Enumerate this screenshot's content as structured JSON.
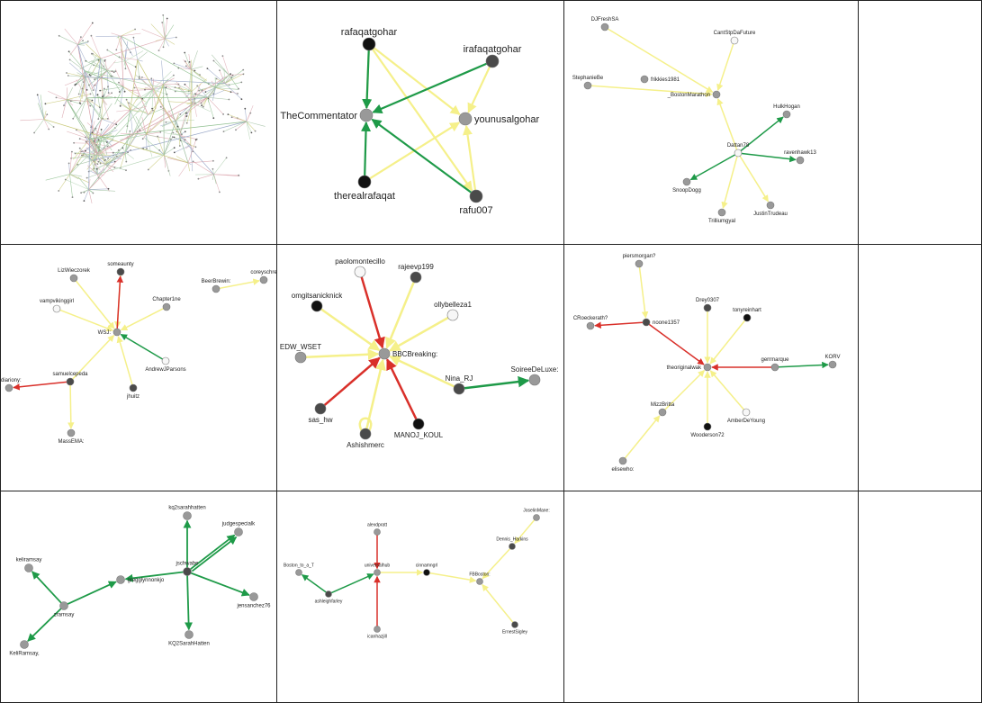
{
  "colors": {
    "edge_mention": "#f5f08a",
    "edge_retweet": "#1e9a48",
    "edge_reply": "#d9302a",
    "node_black": "#111111",
    "node_dark": "#4a4a4a",
    "node_gray": "#999999",
    "node_white": "#f7f7f7",
    "border": "#222222"
  },
  "panels": [
    {
      "id": "overview",
      "kind": "cloud",
      "labels": [],
      "nodes": [],
      "edges": []
    },
    {
      "id": "commentator",
      "font": 11,
      "nodes": [
        {
          "id": "rafaqatgohar",
          "label": "rafaqatgohar",
          "fill": "black",
          "lp": "above"
        },
        {
          "id": "irafaqatgohar",
          "label": "irafaqatgohar",
          "fill": "dark",
          "lp": "above"
        },
        {
          "id": "TheCommentator",
          "label": "TheCommentator",
          "fill": "gray",
          "lp": "left"
        },
        {
          "id": "younusalgohar",
          "label": "younusalgohar",
          "fill": "gray",
          "lp": "right"
        },
        {
          "id": "therealrafaqat",
          "label": "therealrafaqat",
          "fill": "black",
          "lp": "below"
        },
        {
          "id": "rafu007",
          "label": "rafu007",
          "fill": "dark",
          "lp": "below"
        }
      ],
      "edges": [
        {
          "s": "rafaqatgohar",
          "t": "younusalgohar",
          "type": "mention"
        },
        {
          "s": "irafaqatgohar",
          "t": "younusalgohar",
          "type": "mention"
        },
        {
          "s": "therealrafaqat",
          "t": "younusalgohar",
          "type": "mention"
        },
        {
          "s": "rafu007",
          "t": "younusalgohar",
          "type": "mention"
        },
        {
          "s": "rafaqatgohar",
          "t": "TheCommentator",
          "type": "mention"
        },
        {
          "s": "rafaqatgohar",
          "t": "rafu007",
          "type": "mention"
        },
        {
          "s": "irafaqatgohar",
          "t": "TheCommentator",
          "type": "retweet"
        },
        {
          "s": "rafaqatgohar",
          "t": "TheCommentator",
          "type": "retweet"
        },
        {
          "s": "therealrafaqat",
          "t": "TheCommentator",
          "type": "retweet"
        },
        {
          "s": "rafu007",
          "t": "TheCommentator",
          "type": "retweet"
        }
      ]
    },
    {
      "id": "boston-marathon",
      "font": 6,
      "nodes": [
        {
          "id": "DJFreshSA",
          "label": "DJFreshSA",
          "fill": "gray",
          "lp": "above"
        },
        {
          "id": "StephanieBe",
          "label": "StephanieBe",
          "fill": "gray",
          "lp": "above"
        },
        {
          "id": "frikkies1981",
          "label": "frikkies1981",
          "fill": "gray",
          "lp": "right"
        },
        {
          "id": "CantStpDaFuture",
          "label": "CantStpDaFuture",
          "fill": "white",
          "lp": "above"
        },
        {
          "id": "_BostonMarathon",
          "label": "_BostonMarathon",
          "fill": "gray",
          "lp": "left"
        },
        {
          "id": "HulkHogan",
          "label": "HulkHogan",
          "fill": "gray",
          "lp": "above"
        },
        {
          "id": "Dattan78",
          "label": "Dattan78",
          "fill": "white",
          "lp": "above"
        },
        {
          "id": "ravenhawk13",
          "label": "ravenhawk13",
          "fill": "gray",
          "lp": "above"
        },
        {
          "id": "SnoopDogg",
          "label": "SnoopDogg",
          "fill": "gray",
          "lp": "below"
        },
        {
          "id": "JustinTrudeau",
          "label": "JustinTrudeau",
          "fill": "gray",
          "lp": "below"
        },
        {
          "id": "Trilliumgyal",
          "label": "Trilliumgyal",
          "fill": "gray",
          "lp": "below"
        }
      ],
      "edges": [
        {
          "s": "DJFreshSA",
          "t": "_BostonMarathon",
          "type": "mention"
        },
        {
          "s": "StephanieBe",
          "t": "_BostonMarathon",
          "type": "mention"
        },
        {
          "s": "CantStpDaFuture",
          "t": "_BostonMarathon",
          "type": "mention"
        },
        {
          "s": "Dattan78",
          "t": "_BostonMarathon",
          "type": "mention"
        },
        {
          "s": "Dattan78",
          "t": "JustinTrudeau",
          "type": "mention"
        },
        {
          "s": "Dattan78",
          "t": "Trilliumgyal",
          "type": "mention"
        },
        {
          "s": "Dattan78",
          "t": "HulkHogan",
          "type": "retweet"
        },
        {
          "s": "Dattan78",
          "t": "ravenhawk13",
          "type": "retweet"
        },
        {
          "s": "Dattan78",
          "t": "SnoopDogg",
          "type": "retweet"
        }
      ]
    },
    {
      "id": "empty-1",
      "kind": "empty",
      "nodes": [],
      "edges": []
    },
    {
      "id": "wsj",
      "font": 6,
      "nodes": [
        {
          "id": "someaunty",
          "label": "someaunty",
          "fill": "dark",
          "lp": "above"
        },
        {
          "id": "LizWieczorek",
          "label": "LizWieczorek",
          "fill": "gray",
          "lp": "above"
        },
        {
          "id": "coreyschre",
          "label": "coreyschre",
          "fill": "gray",
          "lp": "above"
        },
        {
          "id": "BeerBrewin",
          "label": "BeerBrewin:",
          "fill": "gray",
          "lp": "above"
        },
        {
          "id": "vampvikinggirl",
          "label": "vampvikinggirl",
          "fill": "white",
          "lp": "above"
        },
        {
          "id": "Chapter1ne",
          "label": "Chapter1ne",
          "fill": "gray",
          "lp": "above"
        },
        {
          "id": "WSJ",
          "label": "WSJ:",
          "fill": "gray",
          "lp": "left"
        },
        {
          "id": "AndrewJParsons",
          "label": "AndrewJParsons",
          "fill": "white",
          "lp": "below"
        },
        {
          "id": "samuelcepeda",
          "label": "samuelcepeda",
          "fill": "dark",
          "lp": "above"
        },
        {
          "id": "eldiariony",
          "label": "eldiariony:",
          "fill": "gray",
          "lp": "above"
        },
        {
          "id": "jhuitz",
          "label": "jhuitz",
          "fill": "dark",
          "lp": "below"
        },
        {
          "id": "MassEMA",
          "label": "MassEMA:",
          "fill": "gray",
          "lp": "below"
        }
      ],
      "edges": [
        {
          "s": "LizWieczorek",
          "t": "WSJ",
          "type": "mention"
        },
        {
          "s": "vampvikinggirl",
          "t": "WSJ",
          "type": "mention"
        },
        {
          "s": "Chapter1ne",
          "t": "WSJ",
          "type": "mention"
        },
        {
          "s": "BeerBrewin",
          "t": "coreyschre",
          "type": "mention"
        },
        {
          "s": "samuelcepeda",
          "t": "WSJ",
          "type": "mention"
        },
        {
          "s": "jhuitz",
          "t": "WSJ",
          "type": "mention"
        },
        {
          "s": "samuelcepeda",
          "t": "MassEMA",
          "type": "mention"
        },
        {
          "s": "someaunty",
          "t": "WSJ",
          "type": "mention"
        },
        {
          "s": "WSJ",
          "t": "someaunty",
          "type": "reply"
        },
        {
          "s": "AndrewJParsons",
          "t": "WSJ",
          "type": "retweet"
        },
        {
          "s": "samuelcepeda",
          "t": "eldiariony",
          "type": "reply"
        }
      ]
    },
    {
      "id": "bbc-breaking",
      "font": 8,
      "nodes": [
        {
          "id": "paolomontecillo",
          "label": "paolomontecillo",
          "fill": "white",
          "lp": "above"
        },
        {
          "id": "rajeevp199",
          "label": "rajeevp199",
          "fill": "dark",
          "lp": "above"
        },
        {
          "id": "omgitsanicknick",
          "label": "omgitsanicknick",
          "fill": "black",
          "lp": "above"
        },
        {
          "id": "ollybelleza1",
          "label": "ollybelleza1",
          "fill": "white",
          "lp": "above"
        },
        {
          "id": "EDW_WSET",
          "label": "EDW_WSET",
          "fill": "gray",
          "lp": "above"
        },
        {
          "id": "BBCBreaking",
          "label": "BBCBreaking:",
          "fill": "gray",
          "lp": "right"
        },
        {
          "id": "Nina_RJ",
          "label": "Nina_RJ",
          "fill": "dark",
          "lp": "above"
        },
        {
          "id": "SoireeDeLuxe",
          "label": "SoireeDeLuxe:",
          "fill": "gray",
          "lp": "above"
        },
        {
          "id": "sas_hw",
          "label": "sas_hw",
          "fill": "dark",
          "lp": "below"
        },
        {
          "id": "Ashishmerc",
          "label": "Ashishmerc",
          "fill": "dark",
          "lp": "below"
        },
        {
          "id": "MANOJ_KOUL",
          "label": "MANOJ_KOUL",
          "fill": "black",
          "lp": "below"
        }
      ],
      "edges": [
        {
          "s": "rajeevp199",
          "t": "BBCBreaking",
          "type": "mention"
        },
        {
          "s": "omgitsanicknick",
          "t": "BBCBreaking",
          "type": "mention"
        },
        {
          "s": "ollybelleza1",
          "t": "BBCBreaking",
          "type": "mention"
        },
        {
          "s": "EDW_WSET",
          "t": "BBCBreaking",
          "type": "mention"
        },
        {
          "s": "Nina_RJ",
          "t": "BBCBreaking",
          "type": "mention"
        },
        {
          "s": "Ashishmerc",
          "t": "BBCBreaking",
          "type": "mention"
        },
        {
          "s": "paolomontecillo",
          "t": "BBCBreaking",
          "type": "reply"
        },
        {
          "s": "sas_hw",
          "t": "BBCBreaking",
          "type": "reply"
        },
        {
          "s": "MANOJ_KOUL",
          "t": "BBCBreaking",
          "type": "reply"
        },
        {
          "s": "Nina_RJ",
          "t": "SoireeDeLuxe",
          "type": "retweet"
        },
        {
          "s": "Ashishmerc",
          "t": "Ashishmerc",
          "type": "loop"
        }
      ]
    },
    {
      "id": "theoriginalwak",
      "font": 6,
      "nodes": [
        {
          "id": "piersmorgan",
          "label": "piersmorgan?",
          "fill": "gray",
          "lp": "above"
        },
        {
          "id": "Drey0307",
          "label": "Drey0307",
          "fill": "dark",
          "lp": "above"
        },
        {
          "id": "tonyreinhart",
          "label": "tonyreinhart",
          "fill": "black",
          "lp": "above"
        },
        {
          "id": "CRoeckerath",
          "label": "CRoeckerath?",
          "fill": "gray",
          "lp": "above"
        },
        {
          "id": "noone1357",
          "label": "noone1357",
          "fill": "dark",
          "lp": "right"
        },
        {
          "id": "gerrmarque",
          "label": "gerrmarque",
          "fill": "gray",
          "lp": "above"
        },
        {
          "id": "KORV",
          "label": "KORV",
          "fill": "gray",
          "lp": "above"
        },
        {
          "id": "theoriginalwak",
          "label": "theoriginalwak",
          "fill": "gray",
          "lp": "left"
        },
        {
          "id": "MizzBritta",
          "label": "MizzBritta",
          "fill": "gray",
          "lp": "above"
        },
        {
          "id": "AmberDeYoung",
          "label": "AmberDeYoung",
          "fill": "white",
          "lp": "below"
        },
        {
          "id": "Wooderson72",
          "label": "Wooderson72",
          "fill": "black",
          "lp": "below"
        },
        {
          "id": "elisewho",
          "label": "elisewho:",
          "fill": "gray",
          "lp": "below"
        }
      ],
      "edges": [
        {
          "s": "piersmorgan",
          "t": "noone1357",
          "type": "mention"
        },
        {
          "s": "Drey0307",
          "t": "theoriginalwak",
          "type": "mention"
        },
        {
          "s": "tonyreinhart",
          "t": "theoriginalwak",
          "type": "mention"
        },
        {
          "s": "MizzBritta",
          "t": "theoriginalwak",
          "type": "mention"
        },
        {
          "s": "elisewho",
          "t": "MizzBritta",
          "type": "mention"
        },
        {
          "s": "AmberDeYoung",
          "t": "theoriginalwak",
          "type": "mention"
        },
        {
          "s": "Wooderson72",
          "t": "theoriginalwak",
          "type": "mention"
        },
        {
          "s": "noone1357",
          "t": "CRoeckerath",
          "type": "reply"
        },
        {
          "s": "noone1357",
          "t": "theoriginalwak",
          "type": "reply"
        },
        {
          "s": "gerrmarque",
          "t": "theoriginalwak",
          "type": "reply"
        },
        {
          "s": "gerrmarque",
          "t": "KORV",
          "type": "retweet"
        }
      ]
    },
    {
      "id": "empty-2",
      "kind": "empty",
      "nodes": [],
      "edges": []
    },
    {
      "id": "jschwabe",
      "font": 6,
      "nodes": [
        {
          "id": "kq2sarahhatten",
          "label": "kq2sarahhatten",
          "fill": "gray",
          "lp": "above"
        },
        {
          "id": "judgespecialk",
          "label": "judgespecialk",
          "fill": "gray",
          "lp": "above"
        },
        {
          "id": "keliramsay",
          "label": "keliramsay",
          "fill": "gray",
          "lp": "above"
        },
        {
          "id": "jschwabe",
          "label": "jschwabe",
          "fill": "dark",
          "lp": "above"
        },
        {
          "id": "gregglynnonkjo",
          "label": "gregglynnonkjo",
          "fill": "gray",
          "lp": "right"
        },
        {
          "id": "zramsay",
          "label": "zramsay",
          "fill": "gray",
          "lp": "below"
        },
        {
          "id": "jensanchez76",
          "label": "jensanchez76",
          "fill": "gray",
          "lp": "below"
        },
        {
          "id": "KeliRamsay",
          "label": "KeliRamsay,",
          "fill": "gray",
          "lp": "below"
        },
        {
          "id": "KQ2SarahHatten",
          "label": "KQ2SarahHatten",
          "fill": "gray",
          "lp": "below"
        }
      ],
      "edges": [
        {
          "s": "jschwabe",
          "t": "kq2sarahhatten",
          "type": "retweet"
        },
        {
          "s": "jschwabe",
          "t": "judgespecialk",
          "type": "retweet"
        },
        {
          "s": "jschwabe",
          "t": "judgespecialk",
          "type": "retweet",
          "off": 3
        },
        {
          "s": "jschwabe",
          "t": "gregglynnonkjo",
          "type": "retweet"
        },
        {
          "s": "jschwabe",
          "t": "jensanchez76",
          "type": "retweet"
        },
        {
          "s": "jschwabe",
          "t": "KQ2SarahHatten",
          "type": "retweet"
        },
        {
          "s": "zramsay",
          "t": "keliramsay",
          "type": "retweet"
        },
        {
          "s": "zramsay",
          "t": "gregglynnonkjo",
          "type": "retweet"
        },
        {
          "s": "zramsay",
          "t": "KeliRamsay",
          "type": "retweet"
        }
      ]
    },
    {
      "id": "universalhub",
      "font": 5,
      "nodes": [
        {
          "id": "alexdpratt",
          "label": "alexdpratt",
          "fill": "gray",
          "lp": "above"
        },
        {
          "id": "JoselinMane",
          "label": "JoselinMane:",
          "fill": "gray",
          "lp": "above"
        },
        {
          "id": "Dennis_Harkins",
          "label": "Dennis_Harkins",
          "fill": "dark",
          "lp": "above"
        },
        {
          "id": "Boston_to_a_T",
          "label": "Boston_to_a_T",
          "fill": "gray",
          "lp": "above"
        },
        {
          "id": "universalhub",
          "label": "universalhub",
          "fill": "gray",
          "lp": "above"
        },
        {
          "id": "cinnamngrl",
          "label": "cinnamngrl",
          "fill": "black",
          "lp": "above"
        },
        {
          "id": "FBBoston",
          "label": "FBBoston:",
          "fill": "gray",
          "lp": "above"
        },
        {
          "id": "ashleighfarley",
          "label": "ashleighfarley",
          "fill": "dark",
          "lp": "below"
        },
        {
          "id": "icanhazjill",
          "label": "icanhazjill",
          "fill": "gray",
          "lp": "below"
        },
        {
          "id": "ErnestSigley",
          "label": "ErnestSigley",
          "fill": "dark",
          "lp": "below"
        }
      ],
      "edges": [
        {
          "s": "alexdpratt",
          "t": "universalhub",
          "type": "reply"
        },
        {
          "s": "icanhazjill",
          "t": "universalhub",
          "type": "reply"
        },
        {
          "s": "ashleighfarley",
          "t": "Boston_to_a_T",
          "type": "retweet"
        },
        {
          "s": "ashleighfarley",
          "t": "universalhub",
          "type": "retweet"
        },
        {
          "s": "universalhub",
          "t": "cinnamngrl",
          "type": "mention"
        },
        {
          "s": "cinnamngrl",
          "t": "FBBoston",
          "type": "mention"
        },
        {
          "s": "JoselinMane",
          "t": "Dennis_Harkins",
          "type": "mention"
        },
        {
          "s": "Dennis_Harkins",
          "t": "FBBoston",
          "type": "mention"
        },
        {
          "s": "ErnestSigley",
          "t": "FBBoston",
          "type": "mention"
        }
      ]
    },
    {
      "id": "empty-3",
      "kind": "empty",
      "nodes": [],
      "edges": []
    },
    {
      "id": "empty-4",
      "kind": "empty",
      "nodes": [],
      "edges": []
    }
  ]
}
